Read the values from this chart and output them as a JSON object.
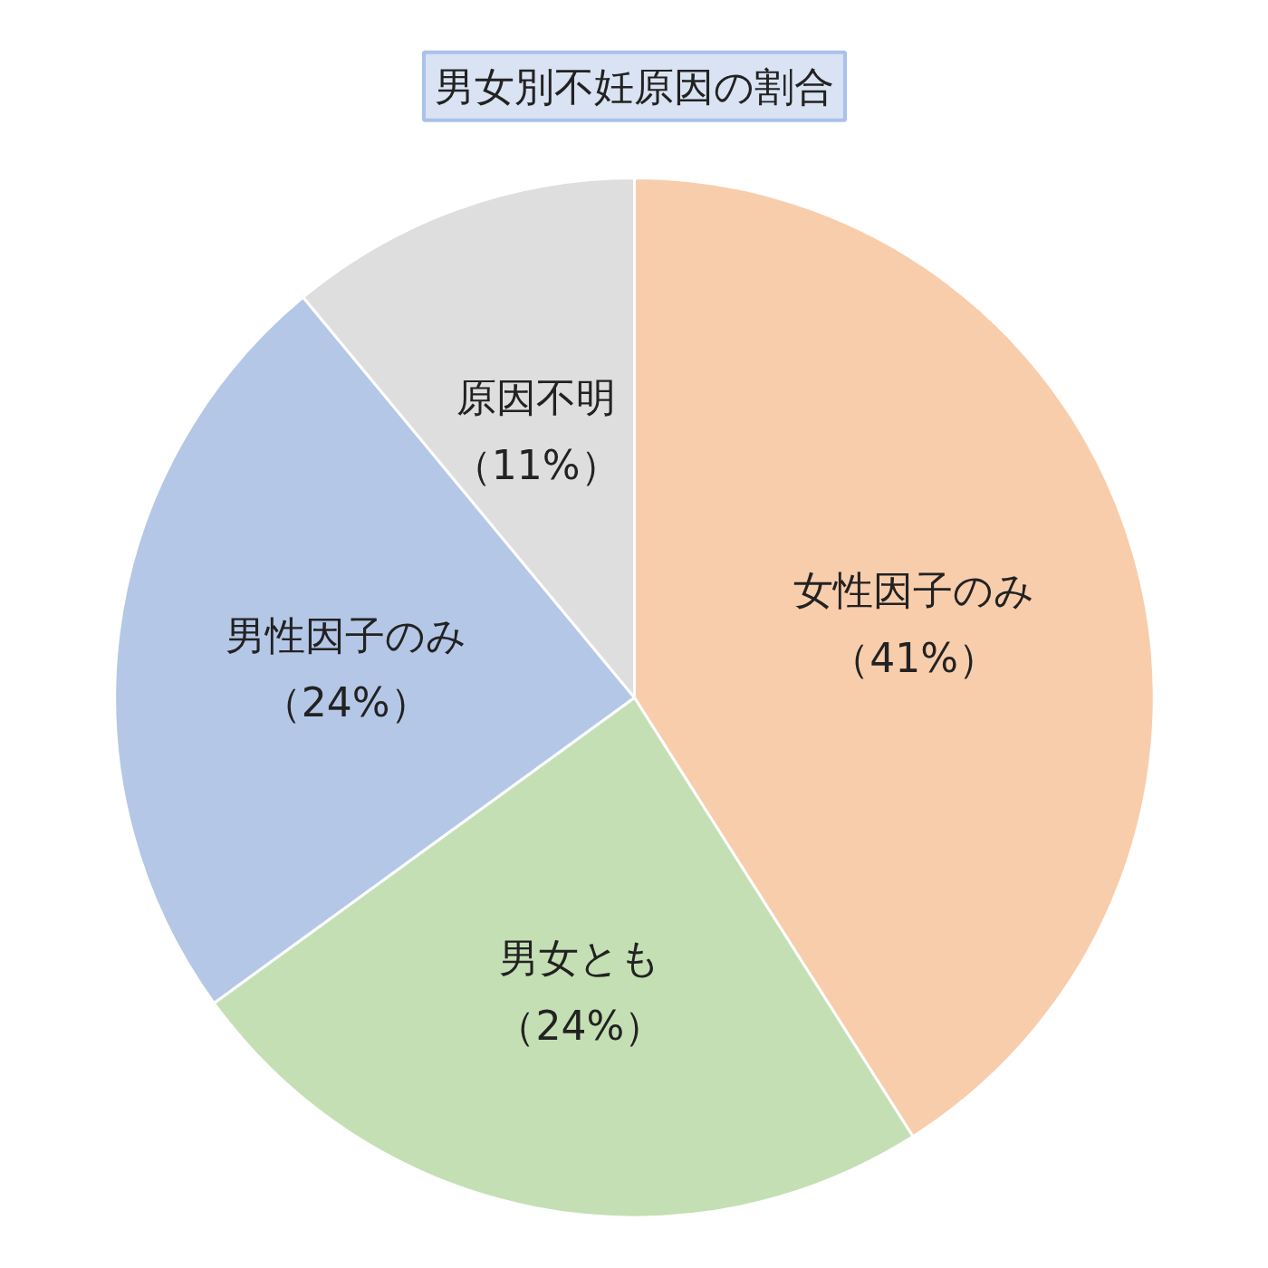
{
  "chart_data": {
    "type": "pie",
    "title": "男女別不妊原因の割合",
    "categories": [
      "女性因子のみ",
      "男女とも",
      "男性因子のみ",
      "原因不明"
    ],
    "values": [
      41,
      24,
      24,
      11
    ],
    "colors": [
      "#f8cdac",
      "#c5dfb4",
      "#b4c7e7",
      "#dedede"
    ],
    "value_labels": [
      "（41%）",
      "（24%）",
      "（24%）",
      "（11%）"
    ]
  }
}
